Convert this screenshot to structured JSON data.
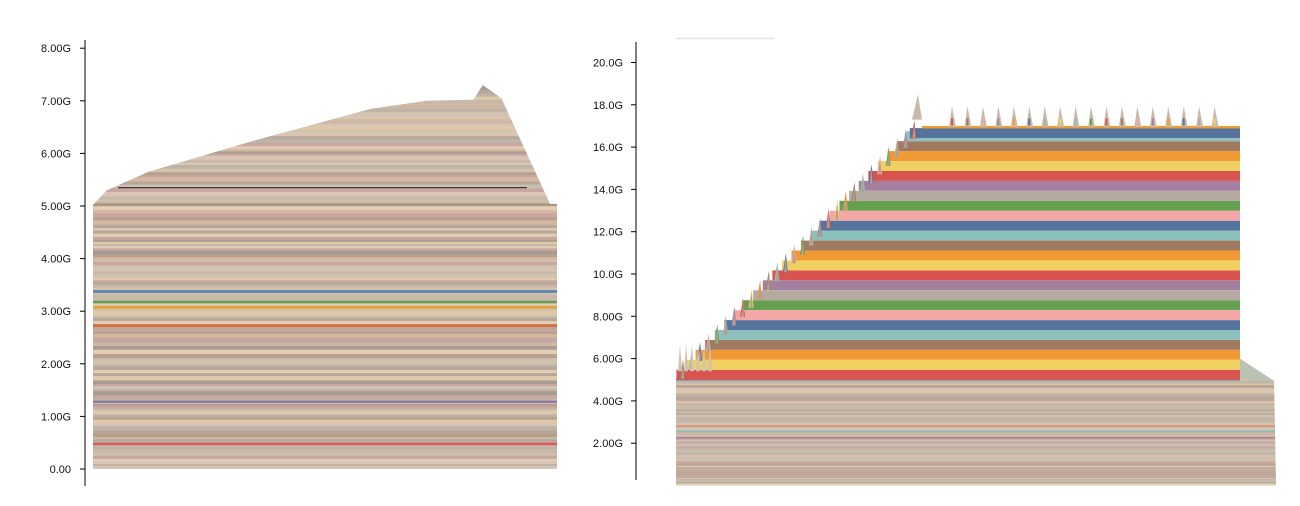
{
  "chart_data": [
    {
      "type": "area",
      "title": "",
      "xlabel": "",
      "ylabel": "",
      "y_unit": "G",
      "ylim": [
        0,
        8.2
      ],
      "y_ticks": [
        {
          "value": 0,
          "label": "0.00"
        },
        {
          "value": 1,
          "label": "1.00G"
        },
        {
          "value": 2,
          "label": "2.00G"
        },
        {
          "value": 3,
          "label": "3.00G"
        },
        {
          "value": 4,
          "label": "4.00G"
        },
        {
          "value": 5,
          "label": "5.00G"
        },
        {
          "value": 6,
          "label": "6.00G"
        },
        {
          "value": 7,
          "label": "7.00G"
        },
        {
          "value": 8,
          "label": "8.00G"
        }
      ],
      "stacked": true,
      "grid": false,
      "legend": "none",
      "total_profile": [
        {
          "t": 0.0,
          "y": 5.02
        },
        {
          "t": 0.03,
          "y": 5.3
        },
        {
          "t": 0.12,
          "y": 5.65
        },
        {
          "t": 0.35,
          "y": 6.25
        },
        {
          "t": 0.6,
          "y": 6.85
        },
        {
          "t": 0.72,
          "y": 7.0
        },
        {
          "t": 0.82,
          "y": 7.02
        },
        {
          "t": 0.84,
          "y": 7.3
        },
        {
          "t": 0.88,
          "y": 7.05
        },
        {
          "t": 0.985,
          "y": 5.04
        },
        {
          "t": 1.0,
          "y": 5.04
        }
      ],
      "series_palette": [
        "#c9b8a8",
        "#d2c2b0",
        "#bdb3a6",
        "#e0c9a8",
        "#c7a7a0",
        "#b9a89a",
        "#d8c5b3",
        "#a89c92",
        "#d5b8a0",
        "#cbbfae",
        "#e2cdb5",
        "#b8a08f"
      ],
      "accent_bands": [
        {
          "y": 3.15,
          "color": "#6a9a55"
        },
        {
          "y": 3.05,
          "color": "#e6a23a"
        },
        {
          "y": 2.7,
          "color": "#d96a3b"
        },
        {
          "y": 3.35,
          "color": "#5b7fb0"
        },
        {
          "y": 1.25,
          "color": "#8f7aa8"
        },
        {
          "y": 0.45,
          "color": "#d95b5b"
        }
      ],
      "baseline_top": 5.02
    },
    {
      "type": "area",
      "title": "",
      "xlabel": "",
      "ylabel": "",
      "y_unit": "G",
      "ylim": [
        0,
        21
      ],
      "y_ticks": [
        {
          "value": 2,
          "label": "2.00G"
        },
        {
          "value": 4,
          "label": "4.00G"
        },
        {
          "value": 6,
          "label": "6.00G"
        },
        {
          "value": 8,
          "label": "8.00G"
        },
        {
          "value": 10,
          "label": "10.0G"
        },
        {
          "value": 12,
          "label": "12.0G"
        },
        {
          "value": 14,
          "label": "14.0G"
        },
        {
          "value": 16,
          "label": "16.0G"
        },
        {
          "value": 18,
          "label": "18.0G"
        },
        {
          "value": 20,
          "label": "20.0G"
        }
      ],
      "stacked": true,
      "grid": false,
      "legend": "none",
      "baseline_top": 5.0,
      "ramp_top": 17.5,
      "plateau_top": 16.9,
      "spike_height": 0.75,
      "plateau_spike_count": 18,
      "ramp_step_count": 28,
      "series_palette": [
        "#d9534f",
        "#f0d060",
        "#f19a35",
        "#a07a60",
        "#8cc0bc",
        "#56749e",
        "#f4a6a6",
        "#65a050",
        "#b5a9a0",
        "#a57fa0"
      ],
      "baseline_palette": [
        "#c9b8a8",
        "#d2c2b0",
        "#bdb3a6",
        "#e0c9a8",
        "#c7a7a0",
        "#b9a89a",
        "#d8c5b3",
        "#cbbfae"
      ]
    }
  ]
}
